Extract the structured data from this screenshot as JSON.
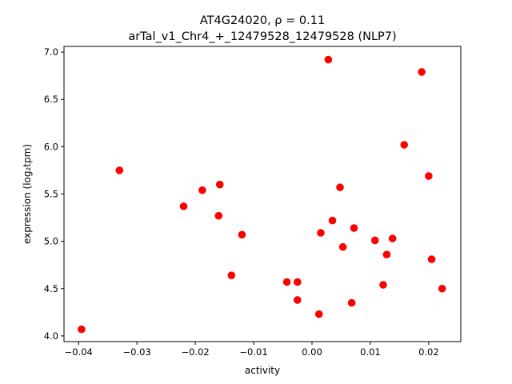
{
  "chart_data": {
    "type": "scatter",
    "title": "AT4G24020, ρ = 0.11",
    "subtitle": "arTal_v1_Chr4_+_12479528_12479528 (NLP7)",
    "xlabel": "activity",
    "ylabel": "expression (log₂tpm)",
    "xlim": [
      -0.0425,
      0.0255
    ],
    "ylim": [
      3.94,
      7.06
    ],
    "xticks": [
      -0.04,
      -0.03,
      -0.02,
      -0.01,
      0.0,
      0.01,
      0.02
    ],
    "xtick_labels": [
      "−0.04",
      "−0.03",
      "−0.02",
      "−0.01",
      "0.00",
      "0.01",
      "0.02"
    ],
    "yticks": [
      4.0,
      4.5,
      5.0,
      5.5,
      6.0,
      6.5,
      7.0
    ],
    "ytick_labels": [
      "4.0",
      "4.5",
      "5.0",
      "5.5",
      "6.0",
      "6.5",
      "7.0"
    ],
    "grid": false,
    "marker_color": "#ff0000",
    "points": [
      {
        "x": -0.0395,
        "y": 4.07
      },
      {
        "x": -0.033,
        "y": 5.75
      },
      {
        "x": -0.022,
        "y": 5.37
      },
      {
        "x": -0.0188,
        "y": 5.54
      },
      {
        "x": -0.016,
        "y": 5.27
      },
      {
        "x": -0.0158,
        "y": 5.6
      },
      {
        "x": -0.0138,
        "y": 4.64
      },
      {
        "x": -0.012,
        "y": 5.07
      },
      {
        "x": -0.0043,
        "y": 4.57
      },
      {
        "x": -0.0025,
        "y": 4.57
      },
      {
        "x": -0.0025,
        "y": 4.38
      },
      {
        "x": 0.0012,
        "y": 4.23
      },
      {
        "x": 0.0015,
        "y": 5.09
      },
      {
        "x": 0.0028,
        "y": 6.92
      },
      {
        "x": 0.0035,
        "y": 5.22
      },
      {
        "x": 0.0048,
        "y": 5.57
      },
      {
        "x": 0.0053,
        "y": 4.94
      },
      {
        "x": 0.0068,
        "y": 4.35
      },
      {
        "x": 0.0072,
        "y": 5.14
      },
      {
        "x": 0.0108,
        "y": 5.01
      },
      {
        "x": 0.0122,
        "y": 4.54
      },
      {
        "x": 0.0128,
        "y": 4.86
      },
      {
        "x": 0.0138,
        "y": 5.03
      },
      {
        "x": 0.0158,
        "y": 6.02
      },
      {
        "x": 0.0188,
        "y": 6.79
      },
      {
        "x": 0.02,
        "y": 5.69
      },
      {
        "x": 0.0205,
        "y": 4.81
      },
      {
        "x": 0.0223,
        "y": 4.5
      }
    ]
  }
}
